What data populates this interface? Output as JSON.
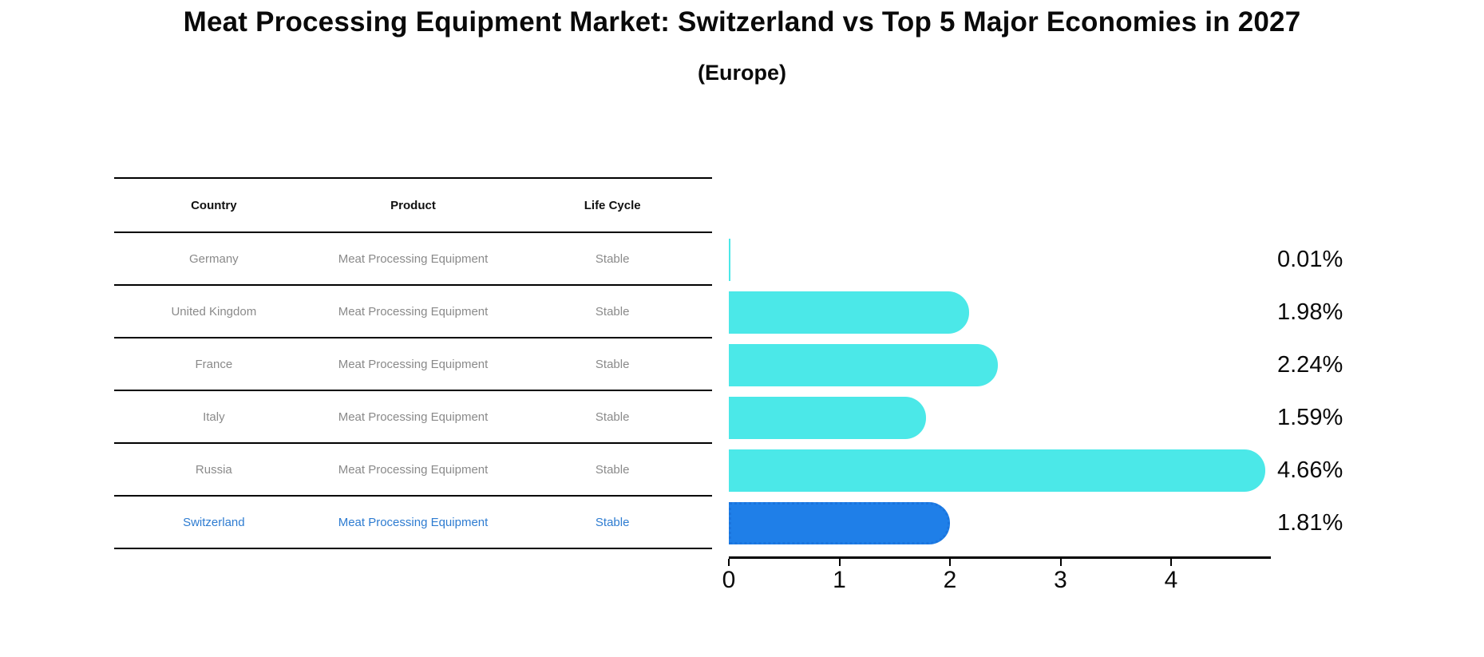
{
  "header": {
    "title": "Meat Processing Equipment Market: Switzerland vs Top 5 Major Economies in 2027",
    "subtitle": "(Europe)"
  },
  "table": {
    "columns": [
      "Country",
      "Product",
      "Life Cycle"
    ],
    "rows": [
      {
        "country": "Germany",
        "product": "Meat Processing Equipment",
        "life_cycle": "Stable",
        "highlight": false
      },
      {
        "country": "United Kingdom",
        "product": "Meat Processing Equipment",
        "life_cycle": "Stable",
        "highlight": false
      },
      {
        "country": "France",
        "product": "Meat Processing Equipment",
        "life_cycle": "Stable",
        "highlight": false
      },
      {
        "country": "Italy",
        "product": "Meat Processing Equipment",
        "life_cycle": "Stable",
        "highlight": false
      },
      {
        "country": "Russia",
        "product": "Meat Processing Equipment",
        "life_cycle": "Stable",
        "highlight": false
      },
      {
        "country": "Switzerland",
        "product": "Meat Processing Equipment",
        "life_cycle": "Stable",
        "highlight": true
      }
    ]
  },
  "chart_data": {
    "type": "bar",
    "orientation": "horizontal",
    "title": "Meat Processing Equipment Market: Switzerland vs Top 5 Major Economies in 2027",
    "subtitle": "(Europe)",
    "categories": [
      "Germany",
      "United Kingdom",
      "France",
      "Italy",
      "Russia",
      "Switzerland"
    ],
    "values": [
      0.01,
      1.98,
      2.24,
      1.59,
      4.66,
      1.81
    ],
    "value_labels": [
      "0.01%",
      "1.98%",
      "2.24%",
      "1.59%",
      "4.66%",
      "1.81%"
    ],
    "highlight_index": 5,
    "x_ticks": [
      "0",
      "1",
      "2",
      "3",
      "4"
    ],
    "xlim": [
      0,
      4.9
    ],
    "grid": false,
    "legend": "none",
    "xlabel": "",
    "ylabel": ""
  },
  "colors": {
    "bar_cyan": "#4be8e8",
    "bar_blue": "#1f7fe8",
    "bar_blue_border": "#1a74dd",
    "accent_blue": "#2e7cd1",
    "muted_text": "#8a8a8a",
    "axis_black": "#000000"
  }
}
